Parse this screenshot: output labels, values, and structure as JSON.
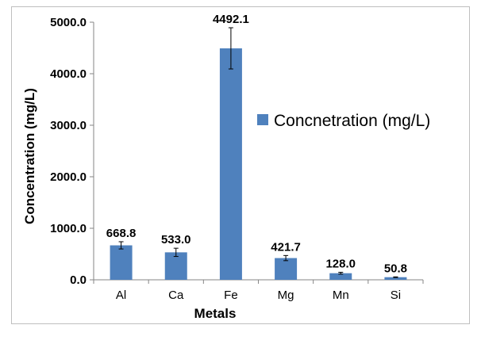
{
  "chart_data": {
    "type": "bar",
    "categories": [
      "Al",
      "Ca",
      "Fe",
      "Mg",
      "Mn",
      "Si"
    ],
    "series": [
      {
        "name": "Concnetration (mg/L)",
        "values": [
          668.8,
          533.0,
          4492.1,
          421.7,
          128.0,
          50.8
        ],
        "value_labels": [
          "668.8",
          "533.0",
          "4492.1",
          "421.7",
          "128.0",
          "50.8"
        ],
        "error": [
          70,
          80,
          400,
          50,
          18,
          6
        ],
        "color": "#4f81bd"
      }
    ],
    "xlabel": "Metals",
    "ylabel": "Concentration (mg/L)",
    "ylim": [
      0,
      5000
    ],
    "yticks": [
      "0.0",
      "1000.0",
      "2000.0",
      "3000.0",
      "4000.0",
      "5000.0"
    ],
    "grid": false,
    "legend_position": "right"
  }
}
